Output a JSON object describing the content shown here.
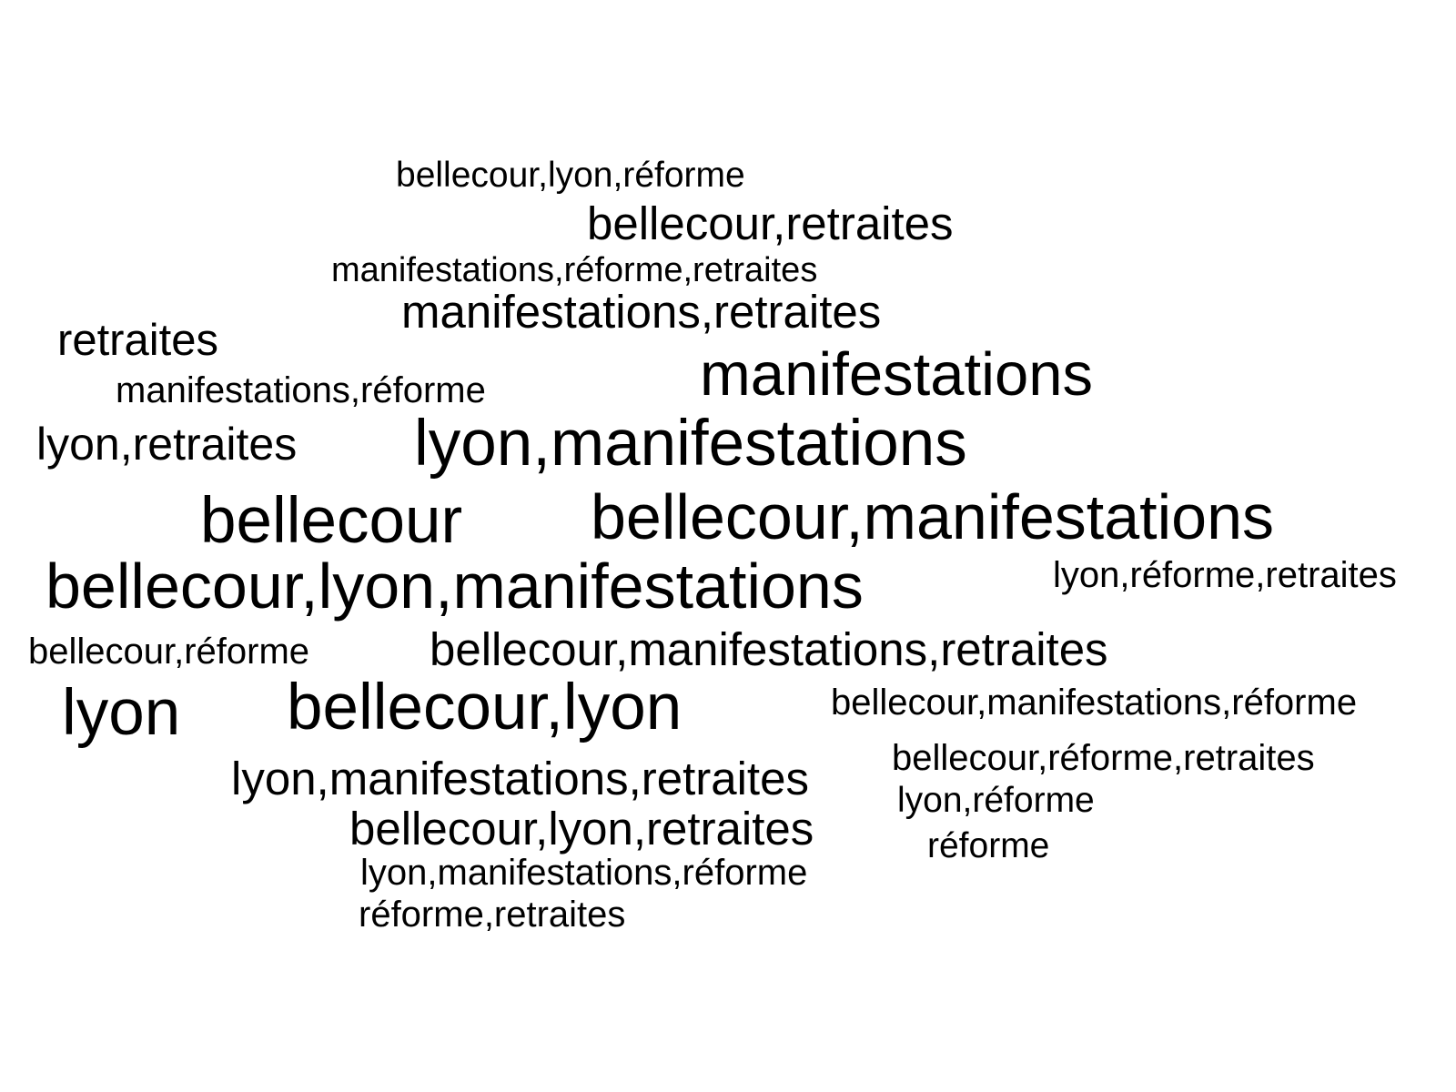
{
  "word_cloud": {
    "words": [
      "bellecour,lyon,réforme",
      "bellecour,retraites",
      "manifestations,réforme,retraites",
      "manifestations,retraites",
      "retraites",
      "manifestations,réforme",
      "manifestations",
      "lyon,retraites",
      "lyon,manifestations",
      "bellecour",
      "bellecour,manifestations",
      "lyon,réforme,retraites",
      "bellecour,lyon,manifestations",
      "bellecour,réforme",
      "bellecour,manifestations,retraites",
      "lyon",
      "bellecour,lyon",
      "bellecour,manifestations,réforme",
      "bellecour,réforme,retraites",
      "lyon,manifestations,retraites",
      "lyon,réforme",
      "bellecour,lyon,retraites",
      "réforme",
      "lyon,manifestations,réforme",
      "réforme,retraites"
    ],
    "text_color": "#000000",
    "background_color": "#ffffff"
  }
}
